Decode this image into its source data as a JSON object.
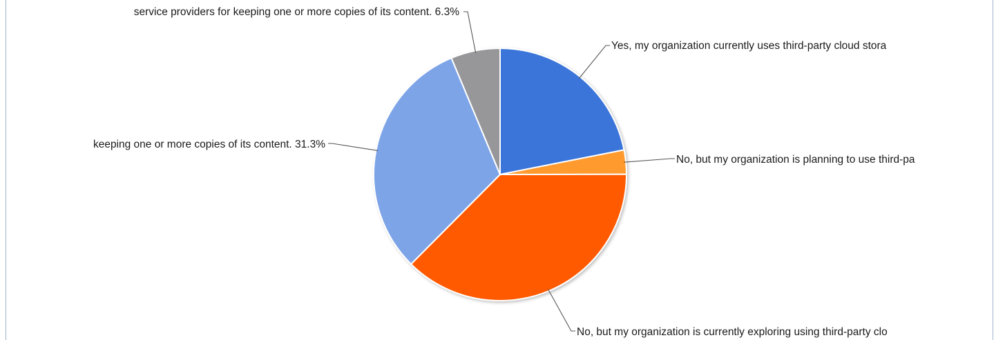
{
  "chart_data": {
    "type": "pie",
    "title": "",
    "legend": "none",
    "slices": [
      {
        "label": "Yes, my organization currently uses third-party cloud stora",
        "value": 21.9,
        "color": "#3a75d9",
        "label_text": "Yes, my organization currently uses third-party cloud stora"
      },
      {
        "label": "No, but my organization is planning to use third-pa",
        "value": 3.1,
        "color": "#ff9a2e",
        "label_text": "No, but my organization is planning to use third-pa"
      },
      {
        "label": "No, but my organization is currently exploring using third-party clo",
        "value": 37.5,
        "color": "#ff5a05",
        "label_text": "No, but my organization is currently exploring using third-party clo"
      },
      {
        "label": "keeping one or more copies of its content.",
        "value": 31.3,
        "color": "#7ea4e8",
        "label_text": "keeping one or more copies of its content. 31.3%"
      },
      {
        "label": "service providers for keeping one or more copies of its content.",
        "value": 6.3,
        "color": "#97979a",
        "label_text": "service providers for keeping one or more copies of its content. 6.3%"
      }
    ]
  }
}
